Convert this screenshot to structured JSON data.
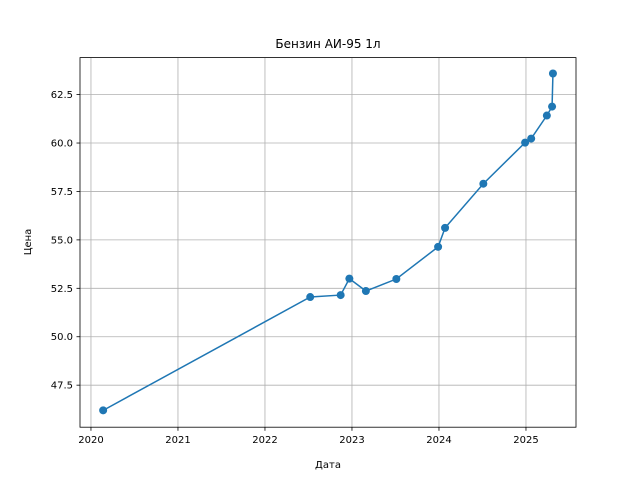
{
  "chart_data": {
    "type": "line",
    "title": "Бензин АИ-95 1л",
    "xlabel": "Дата",
    "ylabel": "Цена",
    "x": [
      2020.14,
      2022.52,
      2022.87,
      2022.97,
      2023.16,
      2023.51,
      2023.99,
      2024.07,
      2024.51,
      2024.99,
      2025.06,
      2025.24,
      2025.3,
      2025.31
    ],
    "series": [
      {
        "name": "Цена",
        "color": "#1f77b4",
        "values": [
          46.2,
          52.05,
          52.15,
          53.0,
          52.36,
          52.98,
          54.64,
          55.62,
          57.9,
          60.02,
          60.23,
          61.42,
          61.88,
          63.59
        ]
      }
    ],
    "xlim": [
      2019.874,
      2025.575
    ],
    "xticks": [
      2020,
      2021,
      2022,
      2023,
      2024,
      2025
    ],
    "ylim": [
      45.33,
      64.41
    ],
    "yticks": [
      47.5,
      {
        "value": 50,
        "label": "50.0"
      },
      52.5,
      {
        "value": 55,
        "label": "55.0"
      },
      57.5,
      {
        "value": 60,
        "label": "60.0"
      },
      62.5
    ],
    "grid": true
  }
}
